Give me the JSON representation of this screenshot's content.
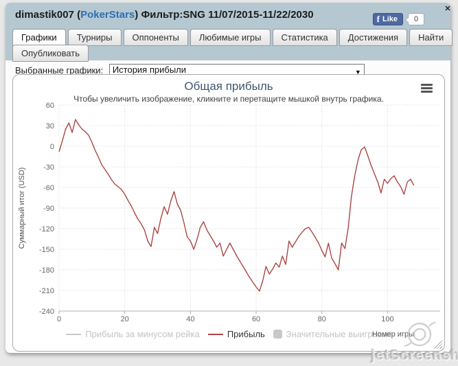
{
  "header": {
    "player_name": "dimastik007",
    "paren_open": "(",
    "site_name": "PokerStars",
    "paren_close": ")",
    "filter_text": "Фильтр:SNG 11/07/2015-11/22/2030",
    "like_label": "Like",
    "like_count": "0",
    "fb_f": "f",
    "close_glyph": "✕"
  },
  "tabs": {
    "items": [
      {
        "label": "Графики",
        "active": true
      },
      {
        "label": "Турниры",
        "active": false
      },
      {
        "label": "Оппоненты",
        "active": false
      },
      {
        "label": "Любимые игры",
        "active": false
      },
      {
        "label": "Статистика",
        "active": false
      },
      {
        "label": "Достижения",
        "active": false
      },
      {
        "label": "Найти",
        "active": false
      },
      {
        "label": "Опубликовать",
        "active": false
      }
    ]
  },
  "selector": {
    "label": "Выбранные графики:",
    "value": "История прибыли",
    "caret": "▼"
  },
  "chart_data": {
    "type": "line",
    "title": "Общая прибыль",
    "subtitle": "Чтобы увеличить изображение, кликните и перетащите мышкой внутрь графика.",
    "xlabel": "Номер игры",
    "ylabel": "Суммарный итог (USD)",
    "ylim": [
      -240,
      60
    ],
    "xlim": [
      0,
      116
    ],
    "y_ticks": [
      60,
      30,
      0,
      -30,
      -60,
      -90,
      -120,
      -150,
      -180,
      -210,
      -240
    ],
    "x_ticks": [
      0,
      20,
      40,
      60,
      80,
      100
    ],
    "grid": "dotted",
    "legend_position": "bottom",
    "series": [
      {
        "name": "Прибыль за минусом рейка",
        "type": "line",
        "visible": false,
        "color": "#c8c8c8",
        "values": []
      },
      {
        "name": "Прибыль",
        "type": "line",
        "visible": true,
        "color": "#aa4643",
        "x_start": 0,
        "x_step": 1,
        "values": [
          -8,
          8,
          25,
          34,
          20,
          39,
          31,
          25,
          21,
          16,
          6,
          -6,
          -16,
          -27,
          -34,
          -41,
          -49,
          -55,
          -59,
          -63,
          -70,
          -79,
          -87,
          -97,
          -106,
          -113,
          -122,
          -138,
          -146,
          -118,
          -127,
          -105,
          -88,
          -99,
          -80,
          -66,
          -84,
          -93,
          -111,
          -132,
          -138,
          -150,
          -136,
          -118,
          -110,
          -122,
          -130,
          -138,
          -147,
          -141,
          -160,
          -150,
          -141,
          -150,
          -159,
          -167,
          -175,
          -183,
          -191,
          -198,
          -205,
          -211,
          -196,
          -175,
          -186,
          -179,
          -170,
          -176,
          -160,
          -172,
          -138,
          -147,
          -139,
          -131,
          -125,
          -120,
          -118,
          -125,
          -133,
          -141,
          -152,
          -161,
          -141,
          -163,
          -171,
          -180,
          -141,
          -149,
          -120,
          -73,
          -43,
          -20,
          -5,
          -1,
          -14,
          -28,
          -40,
          -52,
          -68,
          -48,
          -54,
          -47,
          -43,
          -52,
          -59,
          -70,
          -52,
          -48,
          -57
        ]
      },
      {
        "name": "Значительные выигрыши",
        "type": "area",
        "visible": false,
        "color": "#c8c8c8",
        "values": []
      }
    ]
  },
  "watermark": {
    "text": "jetScreenshot",
    "suffix": ".com"
  },
  "colors": {
    "line": "#aa4643",
    "chart_title": "#3e576f",
    "header_bg": "#b5c8d2",
    "page_bg": "#e8e8e8",
    "link": "#2f6fad",
    "facebook_blue": "#4e69a2",
    "grid": "#d6d6d6",
    "axis": "#b0b0b0"
  }
}
